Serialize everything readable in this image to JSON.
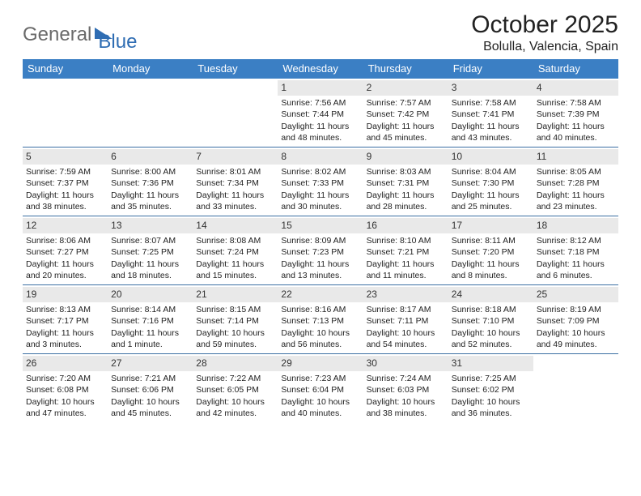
{
  "logo": {
    "part1": "General",
    "part2": "Blue"
  },
  "title": "October 2025",
  "location": "Bolulla, Valencia, Spain",
  "colors": {
    "header_bg": "#3b7fc4",
    "header_text": "#ffffff",
    "daynum_bg": "#e9e9e9",
    "rule": "#3b6fa3",
    "logo_gray": "#6a6a6a",
    "logo_blue": "#2f6db3"
  },
  "dayNames": [
    "Sunday",
    "Monday",
    "Tuesday",
    "Wednesday",
    "Thursday",
    "Friday",
    "Saturday"
  ],
  "weeks": [
    [
      null,
      null,
      null,
      {
        "n": "1",
        "sr": "7:56 AM",
        "ss": "7:44 PM",
        "dl": "11 hours and 48 minutes."
      },
      {
        "n": "2",
        "sr": "7:57 AM",
        "ss": "7:42 PM",
        "dl": "11 hours and 45 minutes."
      },
      {
        "n": "3",
        "sr": "7:58 AM",
        "ss": "7:41 PM",
        "dl": "11 hours and 43 minutes."
      },
      {
        "n": "4",
        "sr": "7:58 AM",
        "ss": "7:39 PM",
        "dl": "11 hours and 40 minutes."
      }
    ],
    [
      {
        "n": "5",
        "sr": "7:59 AM",
        "ss": "7:37 PM",
        "dl": "11 hours and 38 minutes."
      },
      {
        "n": "6",
        "sr": "8:00 AM",
        "ss": "7:36 PM",
        "dl": "11 hours and 35 minutes."
      },
      {
        "n": "7",
        "sr": "8:01 AM",
        "ss": "7:34 PM",
        "dl": "11 hours and 33 minutes."
      },
      {
        "n": "8",
        "sr": "8:02 AM",
        "ss": "7:33 PM",
        "dl": "11 hours and 30 minutes."
      },
      {
        "n": "9",
        "sr": "8:03 AM",
        "ss": "7:31 PM",
        "dl": "11 hours and 28 minutes."
      },
      {
        "n": "10",
        "sr": "8:04 AM",
        "ss": "7:30 PM",
        "dl": "11 hours and 25 minutes."
      },
      {
        "n": "11",
        "sr": "8:05 AM",
        "ss": "7:28 PM",
        "dl": "11 hours and 23 minutes."
      }
    ],
    [
      {
        "n": "12",
        "sr": "8:06 AM",
        "ss": "7:27 PM",
        "dl": "11 hours and 20 minutes."
      },
      {
        "n": "13",
        "sr": "8:07 AM",
        "ss": "7:25 PM",
        "dl": "11 hours and 18 minutes."
      },
      {
        "n": "14",
        "sr": "8:08 AM",
        "ss": "7:24 PM",
        "dl": "11 hours and 15 minutes."
      },
      {
        "n": "15",
        "sr": "8:09 AM",
        "ss": "7:23 PM",
        "dl": "11 hours and 13 minutes."
      },
      {
        "n": "16",
        "sr": "8:10 AM",
        "ss": "7:21 PM",
        "dl": "11 hours and 11 minutes."
      },
      {
        "n": "17",
        "sr": "8:11 AM",
        "ss": "7:20 PM",
        "dl": "11 hours and 8 minutes."
      },
      {
        "n": "18",
        "sr": "8:12 AM",
        "ss": "7:18 PM",
        "dl": "11 hours and 6 minutes."
      }
    ],
    [
      {
        "n": "19",
        "sr": "8:13 AM",
        "ss": "7:17 PM",
        "dl": "11 hours and 3 minutes."
      },
      {
        "n": "20",
        "sr": "8:14 AM",
        "ss": "7:16 PM",
        "dl": "11 hours and 1 minute."
      },
      {
        "n": "21",
        "sr": "8:15 AM",
        "ss": "7:14 PM",
        "dl": "10 hours and 59 minutes."
      },
      {
        "n": "22",
        "sr": "8:16 AM",
        "ss": "7:13 PM",
        "dl": "10 hours and 56 minutes."
      },
      {
        "n": "23",
        "sr": "8:17 AM",
        "ss": "7:11 PM",
        "dl": "10 hours and 54 minutes."
      },
      {
        "n": "24",
        "sr": "8:18 AM",
        "ss": "7:10 PM",
        "dl": "10 hours and 52 minutes."
      },
      {
        "n": "25",
        "sr": "8:19 AM",
        "ss": "7:09 PM",
        "dl": "10 hours and 49 minutes."
      }
    ],
    [
      {
        "n": "26",
        "sr": "7:20 AM",
        "ss": "6:08 PM",
        "dl": "10 hours and 47 minutes."
      },
      {
        "n": "27",
        "sr": "7:21 AM",
        "ss": "6:06 PM",
        "dl": "10 hours and 45 minutes."
      },
      {
        "n": "28",
        "sr": "7:22 AM",
        "ss": "6:05 PM",
        "dl": "10 hours and 42 minutes."
      },
      {
        "n": "29",
        "sr": "7:23 AM",
        "ss": "6:04 PM",
        "dl": "10 hours and 40 minutes."
      },
      {
        "n": "30",
        "sr": "7:24 AM",
        "ss": "6:03 PM",
        "dl": "10 hours and 38 minutes."
      },
      {
        "n": "31",
        "sr": "7:25 AM",
        "ss": "6:02 PM",
        "dl": "10 hours and 36 minutes."
      },
      null
    ]
  ],
  "labels": {
    "sunrise": "Sunrise:",
    "sunset": "Sunset:",
    "daylight": "Daylight:"
  }
}
